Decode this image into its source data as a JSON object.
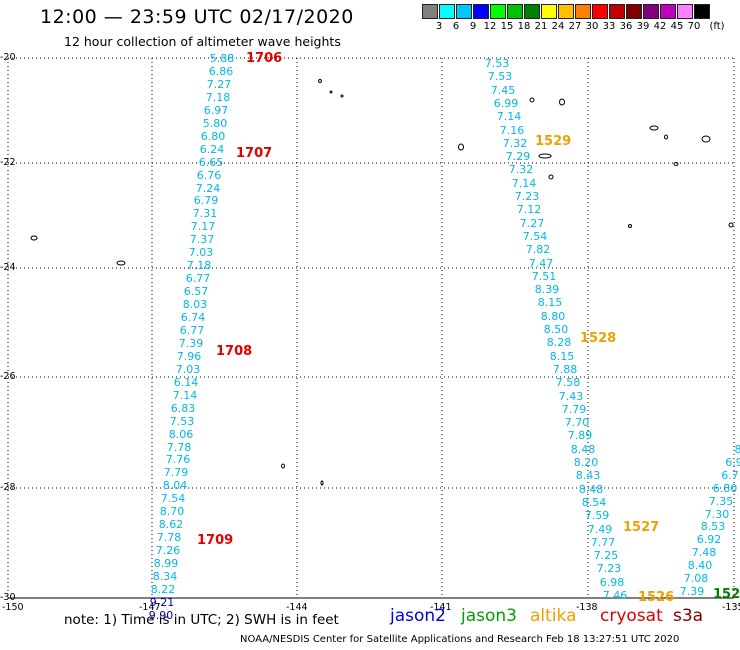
{
  "header": {
    "title": "12:00 — 23:59 UTC 02/17/2020",
    "subtitle": "12 hour collection of altimeter wave heights"
  },
  "legend": {
    "unit": "(ft)",
    "bins": [
      {
        "label": "3",
        "color": "#808080"
      },
      {
        "label": "6",
        "color": "#00ffff"
      },
      {
        "label": "9",
        "color": "#00c8ff"
      },
      {
        "label": "12",
        "color": "#0000ff"
      },
      {
        "label": "15",
        "color": "#00ff00"
      },
      {
        "label": "18",
        "color": "#00c000"
      },
      {
        "label": "21",
        "color": "#008000"
      },
      {
        "label": "24",
        "color": "#ffff00"
      },
      {
        "label": "27",
        "color": "#ffc000"
      },
      {
        "label": "30",
        "color": "#ff8000"
      },
      {
        "label": "33",
        "color": "#ff0000"
      },
      {
        "label": "36",
        "color": "#c00000"
      },
      {
        "label": "39",
        "color": "#800000"
      },
      {
        "label": "42",
        "color": "#800080"
      },
      {
        "label": "45",
        "color": "#c000c0"
      },
      {
        "label": "70",
        "color": "#ff80ff"
      },
      {
        "label": "",
        "color": "#000000"
      }
    ]
  },
  "axes": {
    "lat_labels": [
      "-20",
      "-22",
      "-24",
      "-26",
      "-28",
      "-30"
    ],
    "lon_labels": [
      "-150",
      "-147",
      "-144",
      "-141",
      "-138",
      "-135"
    ]
  },
  "tracks": [
    {
      "color": "#00b8e8",
      "values": [
        "5.88",
        "6.86",
        "7.27",
        "7.18",
        "6.97",
        "5.80",
        "6.80",
        "6.24",
        "6.65",
        "6.76",
        "7.24",
        "6.79",
        "7.31",
        "7.17",
        "7.37",
        "7.03",
        "7.18",
        "6.77",
        "6.57",
        "8.03",
        "6.74",
        "6.77",
        "7.39",
        "7.96",
        "7.03",
        "6.14",
        "7.14",
        "6.83",
        "7.53",
        "8.06",
        "7.78",
        "7.76",
        "7.79",
        "8.04",
        "7.54",
        "8.70",
        "8.62",
        "7.78",
        "7.26",
        "8.99",
        "8.34",
        "8.22",
        "9.21",
        "9.90"
      ]
    },
    {
      "color": "#00b8e8",
      "values": [
        "7.53",
        "7.53",
        "7.45",
        "6.99",
        "7.14",
        "7.16",
        "7.32",
        "7.29",
        "7.32",
        "7.14",
        "7.23",
        "7.12",
        "7.27",
        "7.54",
        "7.82",
        "7.47",
        "7.51",
        "8.39",
        "8.15",
        "8.80",
        "8.50",
        "8.28",
        "8.15",
        "7.88",
        "7.58",
        "7.43",
        "7.79",
        "7.70",
        "7.89",
        "8.48",
        "8.20",
        "8.43",
        "8.48",
        "8.54",
        "7.59",
        "7.49",
        "7.77",
        "7.25",
        "7.23",
        "6.98",
        "7.46"
      ]
    },
    {
      "color": "#00b8e8",
      "values": [
        "8",
        "6.9",
        "6.7",
        "6.80",
        "7.35",
        "7.30",
        "8.53",
        "6.92",
        "7.48",
        "8.40",
        "7.08",
        "7.39"
      ]
    }
  ],
  "time_labels": [
    {
      "text": "1706",
      "color": "#e00000"
    },
    {
      "text": "1707",
      "color": "#e00000"
    },
    {
      "text": "1708",
      "color": "#e00000"
    },
    {
      "text": "1709",
      "color": "#e00000"
    },
    {
      "text": "1529",
      "color": "#f0a000"
    },
    {
      "text": "1528",
      "color": "#f0a000"
    },
    {
      "text": "1527",
      "color": "#f0a000"
    },
    {
      "text": "1526",
      "color": "#f0a000"
    },
    {
      "text": "152",
      "color": "#008000"
    }
  ],
  "footer": {
    "note": "note:  1) Time is in UTC;  2) SWH is in feet",
    "satellites": [
      {
        "name": "jason2",
        "color": "#0000e0"
      },
      {
        "name": "jason3",
        "color": "#00a000"
      },
      {
        "name": "altika",
        "color": "#f0a000"
      },
      {
        "name": "cryosat",
        "color": "#e00000"
      },
      {
        "name": "s3a",
        "color": "#800000"
      }
    ],
    "credit": "NOAA/NESDIS Center for Satellite Applications and Research     Feb 18 13:27:51 UTC 2020"
  }
}
